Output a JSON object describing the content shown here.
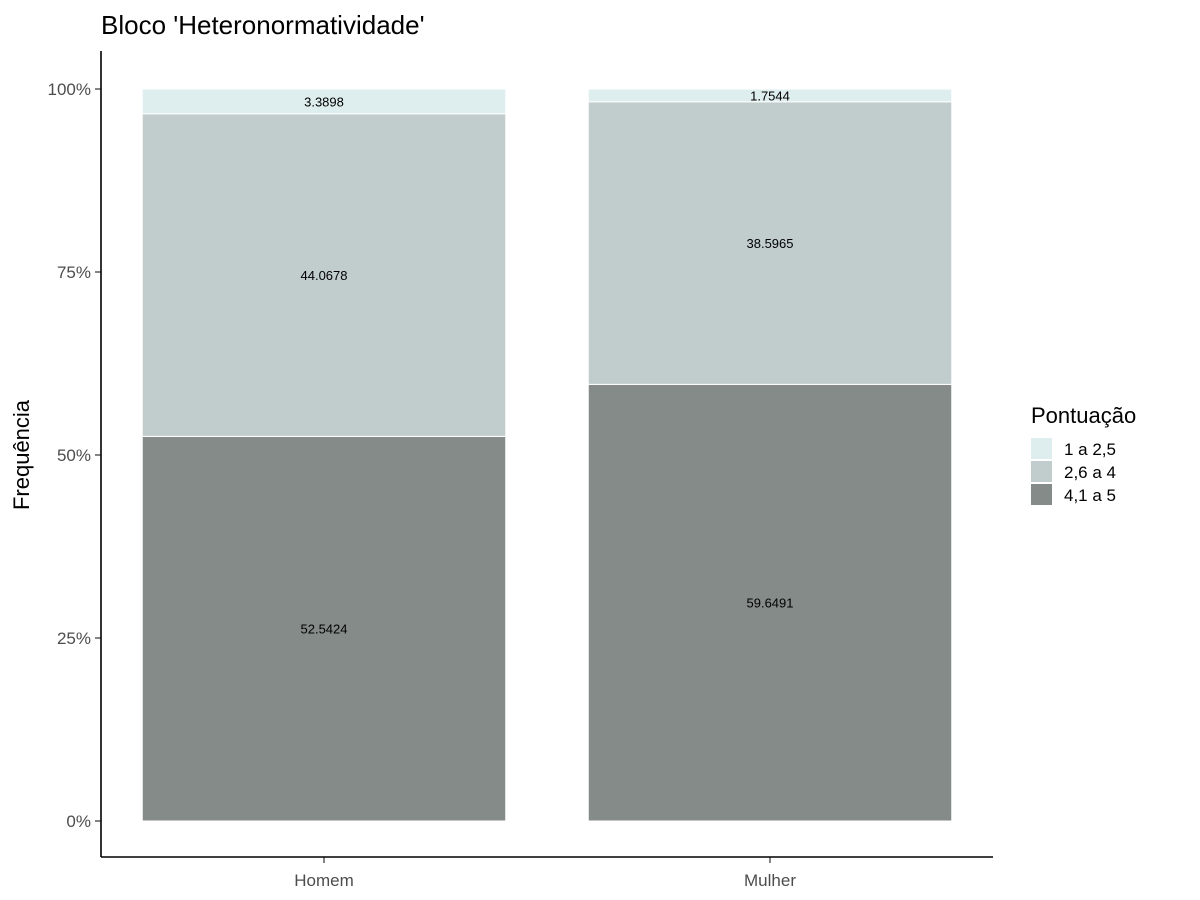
{
  "chart_data": {
    "type": "bar",
    "stacked": true,
    "title": "Bloco 'Heteronormatividade'",
    "xlabel": "",
    "ylabel": "Frequência",
    "categories": [
      "Homem",
      "Mulher"
    ],
    "ylim": [
      0,
      100
    ],
    "yticks": [
      0,
      25,
      50,
      75,
      100
    ],
    "ytick_labels": [
      "0%",
      "25%",
      "50%",
      "75%",
      "100%"
    ],
    "grid": false,
    "legend": {
      "title": "Pontuação",
      "placement": "right"
    },
    "series": [
      {
        "name": "4,1 a 5",
        "values": [
          52.5424,
          59.6491
        ],
        "labels": [
          "52.5424",
          "59.6491"
        ],
        "color": "#858b89"
      },
      {
        "name": "2,6 a 4",
        "values": [
          44.0678,
          38.5965
        ],
        "labels": [
          "44.0678",
          "38.5965"
        ],
        "color": "#c1cccc"
      },
      {
        "name": "1 a 2,5",
        "values": [
          3.3898,
          1.7544
        ],
        "labels": [
          "3.3898",
          "1.7544"
        ],
        "color": "#deeded"
      }
    ]
  }
}
